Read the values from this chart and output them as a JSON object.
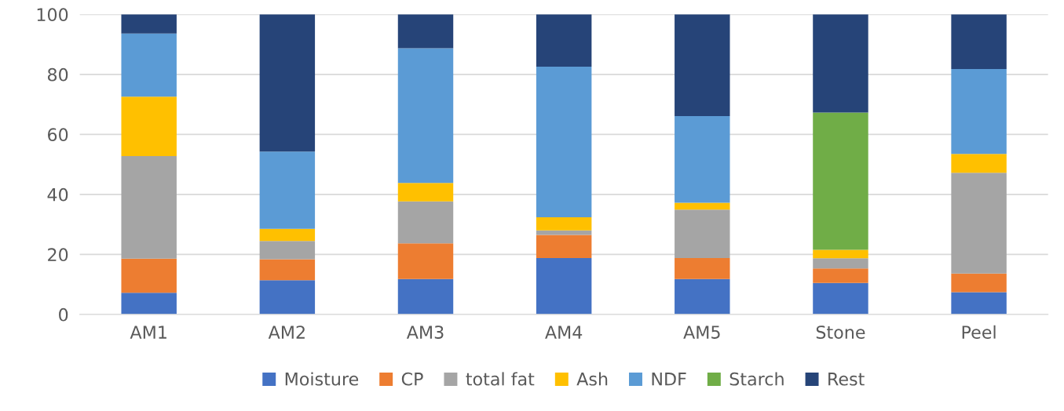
{
  "chart_data": {
    "type": "bar",
    "stacked": true,
    "categories": [
      "AM1",
      "AM2",
      "AM3",
      "AM4",
      "AM5",
      "Stone",
      "Peel"
    ],
    "series": [
      {
        "name": "Moisture",
        "color": "#4472c4",
        "values": [
          7.2,
          11.4,
          11.8,
          18.8,
          11.8,
          10.5,
          7.4
        ]
      },
      {
        "name": "CP",
        "color": "#ed7d31",
        "values": [
          11.4,
          7.0,
          11.9,
          7.7,
          7.0,
          4.8,
          6.2
        ]
      },
      {
        "name": "total fat",
        "color": "#a5a5a5",
        "values": [
          34.2,
          6.1,
          14.0,
          1.5,
          16.1,
          3.4,
          33.6
        ]
      },
      {
        "name": "Ash",
        "color": "#ffc000",
        "values": [
          19.8,
          4.0,
          6.1,
          4.4,
          2.3,
          2.8,
          6.3
        ]
      },
      {
        "name": "NDF",
        "color": "#5b9bd5",
        "values": [
          21.0,
          25.8,
          44.9,
          50.2,
          28.9,
          0,
          28.3
        ]
      },
      {
        "name": "Starch",
        "color": "#70ad47",
        "values": [
          0,
          0,
          0,
          0,
          0,
          45.8,
          0
        ]
      },
      {
        "name": "Rest",
        "color": "#264478",
        "values": [
          6.4,
          45.7,
          11.3,
          17.4,
          33.9,
          32.7,
          18.2
        ]
      }
    ],
    "ylim": [
      0,
      100
    ],
    "yticks": [
      0,
      20,
      40,
      60,
      80,
      100
    ],
    "grid": "y",
    "legend": "bottom"
  }
}
